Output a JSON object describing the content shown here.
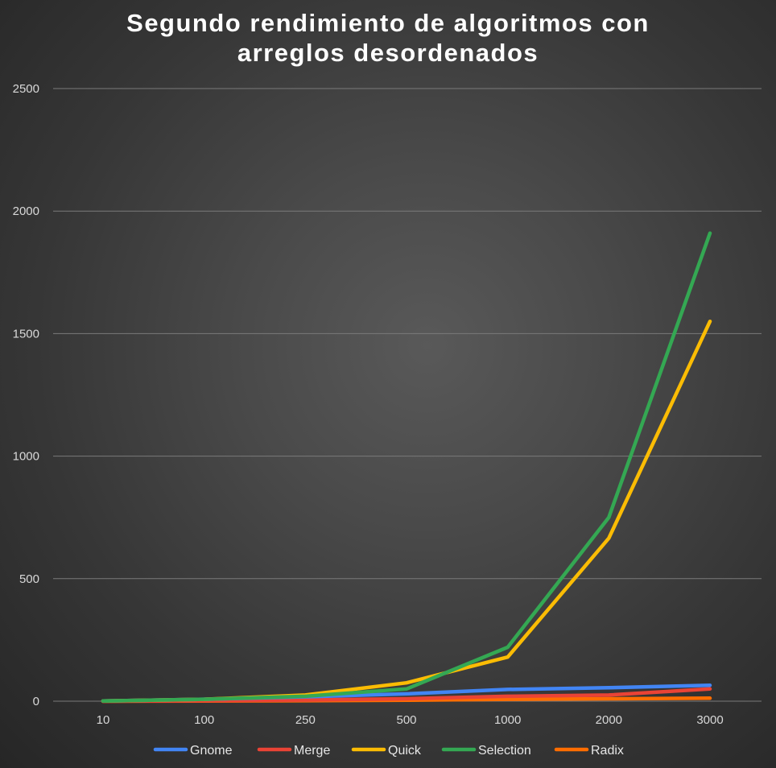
{
  "chart_data": {
    "type": "line",
    "title_lines": [
      "Segundo rendimiento de algoritmos con",
      "arreglos desordenados"
    ],
    "categories": [
      "10",
      "100",
      "250",
      "500",
      "1000",
      "2000",
      "3000"
    ],
    "ylim": [
      0,
      2500
    ],
    "yticks": [
      "0",
      "500",
      "1000",
      "1500",
      "2000",
      "2500"
    ],
    "grid": true,
    "legend_position": "bottom",
    "series": [
      {
        "name": "Gnome",
        "color": "#4285f4",
        "values": [
          1,
          8,
          18,
          30,
          48,
          55,
          65
        ]
      },
      {
        "name": "Merge",
        "color": "#ea4335",
        "values": [
          0,
          2,
          5,
          10,
          20,
          25,
          50
        ]
      },
      {
        "name": "Quick",
        "color": "#fbbc04",
        "values": [
          1,
          8,
          25,
          75,
          180,
          665,
          1550
        ]
      },
      {
        "name": "Selection",
        "color": "#34a853",
        "values": [
          1,
          8,
          20,
          50,
          220,
          750,
          1910
        ]
      },
      {
        "name": "Radix",
        "color": "#ff6d01",
        "values": [
          0,
          1,
          2,
          4,
          8,
          10,
          12
        ]
      }
    ]
  }
}
